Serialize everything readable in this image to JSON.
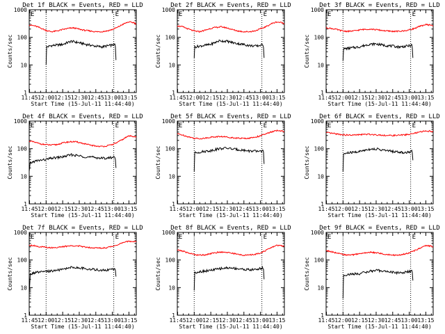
{
  "figure": {
    "xlabel": "Start Time (15-Jul-11 11:44:40)",
    "ylabel": "Counts/sec",
    "x_tick_labels": [
      "11:45",
      "12:00",
      "12:15",
      "12:30",
      "12:45",
      "13:00",
      "13:15"
    ],
    "y_tick_labels": [
      "1",
      "10",
      "100",
      "1000"
    ],
    "marker_labels": [
      "E",
      "E"
    ],
    "colors": {
      "events": "#000000",
      "lld": "#ff0000",
      "axes": "#000000",
      "background": "#ffffff"
    }
  },
  "chart_data": [
    {
      "type": "line",
      "title": "Det 1f BLACK = Events, RED = LLD",
      "x_unit": "minutes after 11:44:40",
      "xlim": [
        0,
        97
      ],
      "ylim": [
        1,
        1000
      ],
      "yscale": "log",
      "markers_x": [
        15.3,
        76.6
      ],
      "series": [
        {
          "name": "Events",
          "x": [
            15.3,
            15.8,
            20,
            30,
            38,
            45,
            52,
            60,
            66,
            72,
            78,
            78.6
          ],
          "values": [
            10,
            45,
            50,
            55,
            72,
            64,
            55,
            48,
            45,
            50,
            55,
            15
          ]
        },
        {
          "name": "LLD",
          "x": [
            0,
            5,
            10,
            15,
            20,
            25,
            30,
            35,
            40,
            45,
            50,
            55,
            60,
            65,
            70,
            75,
            80,
            85,
            90,
            95,
            97
          ],
          "values": [
            280,
            260,
            220,
            180,
            160,
            170,
            190,
            210,
            220,
            200,
            180,
            170,
            160,
            160,
            170,
            190,
            230,
            300,
            360,
            340,
            300
          ]
        }
      ]
    },
    {
      "type": "line",
      "title": "Det 2f BLACK = Events, RED = LLD",
      "x_unit": "minutes after 11:44:40",
      "xlim": [
        0,
        97
      ],
      "ylim": [
        1,
        1000
      ],
      "yscale": "log",
      "markers_x": [
        15.3,
        76.6
      ],
      "series": [
        {
          "name": "Events",
          "x": [
            15.3,
            15.8,
            20,
            30,
            38,
            45,
            52,
            60,
            66,
            72,
            78,
            78.6
          ],
          "values": [
            18,
            45,
            48,
            55,
            75,
            72,
            62,
            55,
            50,
            48,
            55,
            18
          ]
        },
        {
          "name": "LLD",
          "x": [
            0,
            5,
            10,
            15,
            20,
            25,
            30,
            35,
            40,
            45,
            50,
            55,
            60,
            65,
            70,
            75,
            80,
            85,
            90,
            95,
            97
          ],
          "values": [
            260,
            240,
            200,
            170,
            160,
            180,
            210,
            230,
            240,
            220,
            190,
            170,
            160,
            160,
            170,
            200,
            240,
            310,
            360,
            340,
            300
          ]
        }
      ]
    },
    {
      "type": "line",
      "title": "Det 3f BLACK = Events, RED = LLD",
      "x_unit": "minutes after 11:44:40",
      "xlim": [
        0,
        97
      ],
      "ylim": [
        1,
        1000
      ],
      "yscale": "log",
      "markers_x": [
        15.3,
        76.6
      ],
      "series": [
        {
          "name": "Events",
          "x": [
            15.3,
            15.8,
            20,
            30,
            38,
            45,
            52,
            60,
            66,
            72,
            78,
            78.6
          ],
          "values": [
            14,
            38,
            40,
            45,
            55,
            58,
            52,
            48,
            45,
            47,
            52,
            18
          ]
        },
        {
          "name": "LLD",
          "x": [
            0,
            5,
            10,
            15,
            20,
            25,
            30,
            35,
            40,
            45,
            50,
            55,
            60,
            65,
            70,
            75,
            80,
            85,
            90,
            95,
            97
          ],
          "values": [
            220,
            210,
            190,
            170,
            165,
            170,
            185,
            195,
            200,
            190,
            180,
            170,
            165,
            165,
            170,
            185,
            210,
            250,
            290,
            280,
            260
          ]
        }
      ]
    },
    {
      "type": "line",
      "title": "Det 4f BLACK = Events, RED = LLD",
      "x_unit": "minutes after 11:44:40",
      "xlim": [
        0,
        97
      ],
      "ylim": [
        1,
        1000
      ],
      "yscale": "log",
      "markers_x": [
        15.3,
        76.6
      ],
      "series": [
        {
          "name": "Events",
          "x": [
            0,
            1,
            5,
            10,
            15,
            20,
            30,
            38,
            45,
            52,
            60,
            66,
            72,
            78,
            78.6
          ],
          "values": [
            15,
            30,
            35,
            38,
            40,
            45,
            50,
            60,
            55,
            50,
            48,
            45,
            46,
            50,
            20
          ]
        },
        {
          "name": "LLD",
          "x": [
            0,
            5,
            10,
            15,
            20,
            25,
            30,
            35,
            40,
            45,
            50,
            55,
            60,
            65,
            70,
            75,
            80,
            85,
            90,
            95,
            97
          ],
          "values": [
            190,
            170,
            150,
            140,
            135,
            140,
            160,
            175,
            180,
            170,
            150,
            135,
            125,
            120,
            125,
            140,
            170,
            220,
            290,
            280,
            260
          ]
        }
      ]
    },
    {
      "type": "line",
      "title": "Det 5f BLACK = Events, RED = LLD",
      "x_unit": "minutes after 11:44:40",
      "xlim": [
        0,
        97
      ],
      "ylim": [
        1,
        1000
      ],
      "yscale": "log",
      "markers_x": [
        15.3,
        76.6
      ],
      "series": [
        {
          "name": "Events",
          "x": [
            15.3,
            15.8,
            20,
            30,
            38,
            45,
            52,
            60,
            66,
            72,
            78,
            78.6
          ],
          "values": [
            15,
            70,
            75,
            85,
            100,
            105,
            95,
            88,
            82,
            80,
            85,
            28
          ]
        },
        {
          "name": "LLD",
          "x": [
            0,
            5,
            10,
            15,
            20,
            25,
            30,
            35,
            40,
            45,
            50,
            55,
            60,
            65,
            70,
            75,
            80,
            85,
            90,
            95,
            97
          ],
          "values": [
            350,
            310,
            270,
            240,
            230,
            240,
            260,
            270,
            275,
            265,
            250,
            240,
            235,
            240,
            260,
            290,
            340,
            400,
            450,
            440,
            420
          ]
        }
      ]
    },
    {
      "type": "line",
      "title": "Det 6f BLACK = Events, RED = LLD",
      "x_unit": "minutes after 11:44:40",
      "xlim": [
        0,
        97
      ],
      "ylim": [
        1,
        1000
      ],
      "yscale": "log",
      "markers_x": [
        15.3,
        76.6
      ],
      "series": [
        {
          "name": "Events",
          "x": [
            15.3,
            15.8,
            20,
            30,
            38,
            45,
            52,
            60,
            66,
            72,
            78,
            78.6
          ],
          "values": [
            15,
            65,
            70,
            78,
            95,
            98,
            88,
            80,
            75,
            72,
            80,
            38
          ]
        },
        {
          "name": "LLD",
          "x": [
            0,
            5,
            10,
            15,
            20,
            25,
            30,
            35,
            40,
            45,
            50,
            55,
            60,
            65,
            70,
            75,
            80,
            85,
            90,
            95,
            97
          ],
          "values": [
            380,
            360,
            340,
            320,
            310,
            310,
            320,
            330,
            330,
            320,
            310,
            300,
            300,
            305,
            315,
            330,
            360,
            400,
            440,
            430,
            420
          ]
        }
      ]
    },
    {
      "type": "line",
      "title": "Det 7f BLACK = Events, RED = LLD",
      "x_unit": "minutes after 11:44:40",
      "xlim": [
        0,
        97
      ],
      "ylim": [
        1,
        1000
      ],
      "yscale": "log",
      "markers_x": [
        15.3,
        76.6
      ],
      "series": [
        {
          "name": "Events",
          "x": [
            0,
            1,
            5,
            10,
            15,
            20,
            30,
            38,
            45,
            52,
            60,
            66,
            72,
            78,
            78.6
          ],
          "values": [
            6,
            30,
            35,
            36,
            38,
            40,
            45,
            55,
            52,
            48,
            45,
            42,
            44,
            48,
            25
          ]
        },
        {
          "name": "LLD",
          "x": [
            0,
            5,
            10,
            15,
            20,
            25,
            30,
            35,
            40,
            45,
            50,
            55,
            60,
            65,
            70,
            75,
            80,
            85,
            90,
            95,
            97
          ],
          "values": [
            350,
            330,
            300,
            290,
            280,
            285,
            300,
            320,
            330,
            320,
            300,
            285,
            275,
            270,
            280,
            310,
            360,
            420,
            480,
            470,
            450
          ]
        }
      ]
    },
    {
      "type": "line",
      "title": "Det 8f BLACK = Events, RED = LLD",
      "x_unit": "minutes after 11:44:40",
      "xlim": [
        0,
        97
      ],
      "ylim": [
        1,
        1000
      ],
      "yscale": "log",
      "markers_x": [
        15.3,
        76.6
      ],
      "series": [
        {
          "name": "Events",
          "x": [
            15.3,
            15.8,
            20,
            30,
            38,
            45,
            52,
            60,
            66,
            72,
            78,
            78.6
          ],
          "values": [
            8,
            35,
            38,
            42,
            48,
            52,
            50,
            46,
            44,
            46,
            52,
            20
          ]
        },
        {
          "name": "LLD",
          "x": [
            0,
            5,
            10,
            15,
            20,
            25,
            30,
            35,
            40,
            45,
            50,
            55,
            60,
            65,
            70,
            75,
            80,
            85,
            90,
            95,
            97
          ],
          "values": [
            230,
            210,
            180,
            160,
            150,
            155,
            170,
            185,
            195,
            190,
            175,
            160,
            150,
            150,
            160,
            180,
            220,
            280,
            340,
            330,
            310
          ]
        }
      ]
    },
    {
      "type": "line",
      "title": "Det 9f BLACK = Events, RED = LLD",
      "x_unit": "minutes after 11:44:40",
      "xlim": [
        0,
        97
      ],
      "ylim": [
        1,
        1000
      ],
      "yscale": "log",
      "markers_x": [
        15.3,
        76.6
      ],
      "series": [
        {
          "name": "Events",
          "x": [
            15.3,
            15.8,
            20,
            30,
            38,
            45,
            52,
            60,
            66,
            72,
            78,
            78.6
          ],
          "values": [
            4,
            28,
            30,
            32,
            38,
            42,
            40,
            36,
            34,
            36,
            40,
            18
          ]
        },
        {
          "name": "LLD",
          "x": [
            0,
            5,
            10,
            15,
            20,
            25,
            30,
            35,
            40,
            45,
            50,
            55,
            60,
            65,
            70,
            75,
            80,
            85,
            90,
            95,
            97
          ],
          "values": [
            220,
            200,
            175,
            160,
            150,
            155,
            170,
            180,
            190,
            185,
            170,
            160,
            150,
            150,
            160,
            180,
            215,
            270,
            330,
            320,
            300
          ]
        }
      ]
    }
  ]
}
